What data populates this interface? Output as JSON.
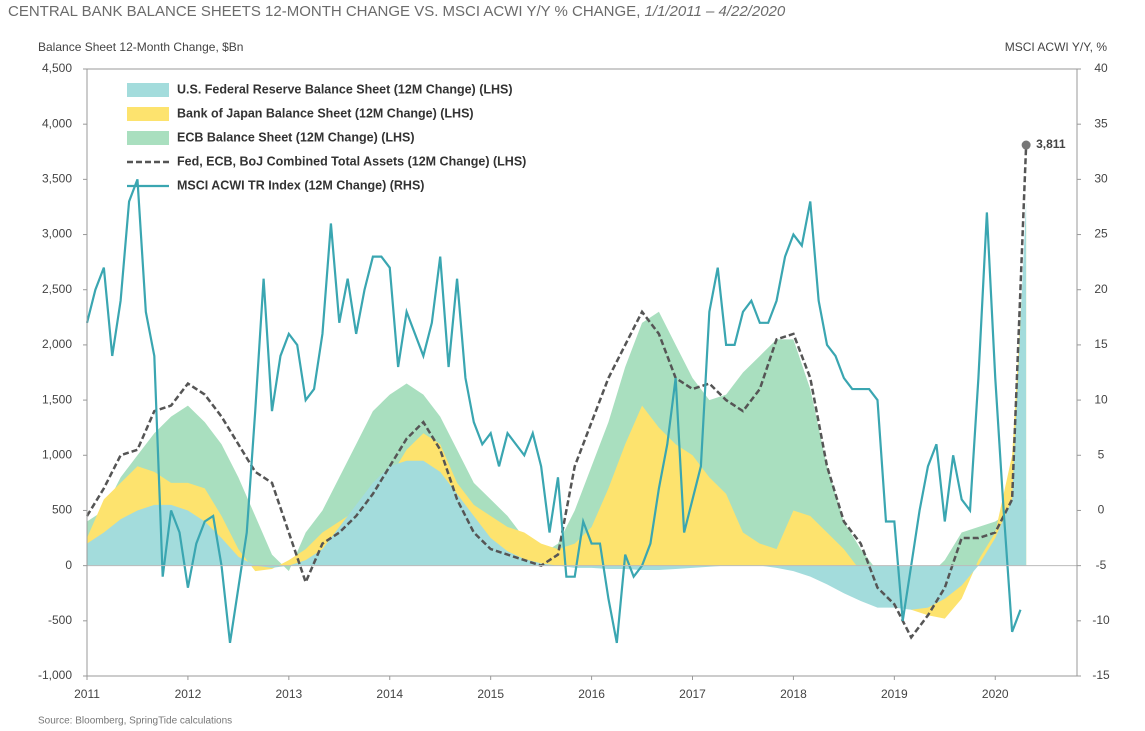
{
  "chart_data": {
    "type": "area",
    "title": "CENTRAL BANK BALANCE SHEETS 12-MONTH CHANGE VS. MSCI ACWI Y/Y % CHANGE, ",
    "date_range": "1/1/2011 – 4/22/2020",
    "y_label": "Balance Sheet 12-Month Change, $Bn",
    "y2_label": "MSCI ACWI Y/Y, %",
    "source": "Source: Bloomberg, SpringTide calculations",
    "legend": "upper left",
    "xlim": [
      2011,
      2020.81
    ],
    "xticks": [
      2011,
      2012,
      2013,
      2014,
      2015,
      2016,
      2017,
      2018,
      2019,
      2020
    ],
    "ylim": [
      -1000,
      4500
    ],
    "yticks": [
      {
        "value": -1000,
        "label": "-1,000"
      },
      -500,
      0,
      500,
      {
        "value": 1000,
        "label": "1,000"
      },
      {
        "value": 1500,
        "label": "1,500"
      },
      {
        "value": 2000,
        "label": "2,000"
      },
      {
        "value": 2500,
        "label": "2,500"
      },
      {
        "value": 3000,
        "label": "3,000"
      },
      {
        "value": 3500,
        "label": "3,500"
      },
      {
        "value": 4000,
        "label": "4,000"
      },
      {
        "value": 4500,
        "label": "4,500"
      }
    ],
    "y2lim": [
      -15,
      40
    ],
    "y2ticks": [
      -15,
      -10,
      -5,
      0,
      5,
      10,
      15,
      20,
      25,
      30,
      35,
      40
    ],
    "x": [
      2011,
      2011.167,
      2011.333,
      2011.5,
      2011.667,
      2011.833,
      2012,
      2012.167,
      2012.333,
      2012.5,
      2012.667,
      2012.833,
      2013,
      2013.167,
      2013.333,
      2013.5,
      2013.667,
      2013.833,
      2014,
      2014.167,
      2014.333,
      2014.5,
      2014.667,
      2014.833,
      2015,
      2015.167,
      2015.333,
      2015.5,
      2015.667,
      2015.833,
      2016,
      2016.167,
      2016.333,
      2016.5,
      2016.667,
      2016.833,
      2017,
      2017.167,
      2017.333,
      2017.5,
      2017.667,
      2017.833,
      2018,
      2018.167,
      2018.333,
      2018.5,
      2018.667,
      2018.833,
      2019,
      2019.167,
      2019.333,
      2019.5,
      2019.667,
      2019.833,
      2020,
      2020.167,
      2020.306
    ],
    "series": [
      {
        "name": "U.S. Federal Reserve Balance Sheet (12M Change) (LHS)",
        "type": "area",
        "color": "#a3dcdc",
        "values": [
          200,
          300,
          420,
          500,
          550,
          550,
          500,
          400,
          250,
          80,
          0,
          -20,
          0,
          50,
          150,
          350,
          550,
          750,
          900,
          950,
          950,
          850,
          650,
          450,
          250,
          130,
          60,
          20,
          0,
          -20,
          -20,
          -30,
          -30,
          -40,
          -40,
          -30,
          -20,
          -10,
          0,
          0,
          0,
          -20,
          -50,
          -100,
          -170,
          -250,
          -320,
          -380,
          -380,
          -400,
          -380,
          -300,
          -180,
          0,
          250,
          600,
          3300
        ]
      },
      {
        "name": "Bank of Japan Balance Sheet (12M Change) (LHS)",
        "type": "area",
        "color": "#fde36e",
        "values": [
          250,
          600,
          750,
          900,
          850,
          750,
          750,
          700,
          450,
          150,
          -50,
          -30,
          50,
          150,
          300,
          400,
          500,
          550,
          800,
          1050,
          1200,
          1100,
          750,
          550,
          450,
          350,
          300,
          200,
          150,
          200,
          350,
          700,
          1100,
          1450,
          1250,
          1100,
          1000,
          800,
          650,
          300,
          200,
          150,
          500,
          450,
          300,
          150,
          -50,
          -200,
          -320,
          -400,
          -450,
          -480,
          -300,
          50,
          300,
          1000,
          3100
        ]
      },
      {
        "name": "ECB Balance Sheet (12M Change) (LHS)",
        "type": "area",
        "color": "#a9dfbf",
        "values": [
          400,
          500,
          800,
          1000,
          1200,
          1350,
          1450,
          1300,
          1100,
          800,
          450,
          100,
          -50,
          300,
          500,
          800,
          1100,
          1400,
          1550,
          1650,
          1550,
          1350,
          1050,
          750,
          600,
          450,
          250,
          100,
          200,
          500,
          900,
          1300,
          1800,
          2200,
          2300,
          2000,
          1700,
          1500,
          1550,
          1750,
          1900,
          2050,
          2050,
          1600,
          900,
          400,
          150,
          -50,
          -150,
          -200,
          -100,
          50,
          300,
          350,
          400,
          500,
          600
        ]
      },
      {
        "name": "Fed, ECB, BoJ Combined Total Assets (12M Change) (LHS)",
        "type": "line",
        "style": "dashed",
        "color": "#555555",
        "values": [
          450,
          700,
          1000,
          1050,
          1400,
          1450,
          1650,
          1550,
          1350,
          1100,
          850,
          750,
          300,
          -150,
          200,
          300,
          450,
          650,
          900,
          1150,
          1300,
          1050,
          600,
          300,
          150,
          100,
          50,
          0,
          100,
          900,
          1300,
          1700,
          2000,
          2300,
          2100,
          1700,
          1600,
          1650,
          1500,
          1400,
          1600,
          2050,
          2100,
          1700,
          900,
          400,
          200,
          -200,
          -350,
          -650,
          -450,
          -200,
          250,
          250,
          300,
          600,
          3811
        ],
        "value_labels": [
          null,
          null,
          null,
          null,
          null,
          null,
          null,
          null,
          null,
          null,
          null,
          null,
          null,
          null,
          null,
          null,
          null,
          null,
          null,
          null,
          null,
          null,
          null,
          null,
          null,
          null,
          null,
          null,
          null,
          null,
          null,
          null,
          null,
          null,
          null,
          null,
          null,
          null,
          null,
          null,
          null,
          null,
          null,
          null,
          null,
          null,
          null,
          null,
          null,
          null,
          null,
          null,
          null,
          null,
          null,
          null,
          "3,811"
        ]
      },
      {
        "name": "MSCI ACWI TR Index (12M Change) (RHS)",
        "type": "line",
        "style": "solid",
        "axis": "y2",
        "color": "#3aa6b1",
        "x": [
          2011,
          2011.083,
          2011.167,
          2011.25,
          2011.333,
          2011.417,
          2011.5,
          2011.583,
          2011.667,
          2011.75,
          2011.833,
          2011.917,
          2012,
          2012.083,
          2012.167,
          2012.25,
          2012.333,
          2012.417,
          2012.5,
          2012.583,
          2012.667,
          2012.75,
          2012.833,
          2012.917,
          2013,
          2013.083,
          2013.167,
          2013.25,
          2013.333,
          2013.417,
          2013.5,
          2013.583,
          2013.667,
          2013.75,
          2013.833,
          2013.917,
          2014,
          2014.083,
          2014.167,
          2014.25,
          2014.333,
          2014.417,
          2014.5,
          2014.583,
          2014.667,
          2014.75,
          2014.833,
          2014.917,
          2015,
          2015.083,
          2015.167,
          2015.25,
          2015.333,
          2015.417,
          2015.5,
          2015.583,
          2015.667,
          2015.75,
          2015.833,
          2015.917,
          2016,
          2016.083,
          2016.167,
          2016.25,
          2016.333,
          2016.417,
          2016.5,
          2016.583,
          2016.667,
          2016.75,
          2016.833,
          2016.917,
          2017,
          2017.083,
          2017.167,
          2017.25,
          2017.333,
          2017.417,
          2017.5,
          2017.583,
          2017.667,
          2017.75,
          2017.833,
          2017.917,
          2018,
          2018.083,
          2018.167,
          2018.25,
          2018.333,
          2018.417,
          2018.5,
          2018.583,
          2018.667,
          2018.75,
          2018.833,
          2018.917,
          2019,
          2019.083,
          2019.167,
          2019.25,
          2019.333,
          2019.417,
          2019.5,
          2019.583,
          2019.667,
          2019.75,
          2019.833,
          2019.917,
          2020,
          2020.083,
          2020.167,
          2020.25
        ],
        "values": [
          17,
          20,
          22,
          14,
          19,
          28,
          30,
          18,
          14,
          -6,
          0,
          -2,
          -7,
          -3,
          -1,
          -0.5,
          -5,
          -12,
          -7,
          -2,
          9,
          21,
          9,
          14,
          16,
          15,
          10,
          11,
          16,
          26,
          17,
          21,
          16,
          20,
          23,
          23,
          22,
          13,
          18,
          16,
          14,
          17,
          23,
          13,
          21,
          12,
          8,
          6,
          7,
          4,
          7,
          6,
          5,
          7,
          4,
          -2,
          3,
          -6,
          -6,
          -1,
          -3,
          -3,
          -8,
          -12,
          -4,
          -6,
          -5,
          -3,
          2,
          6,
          12,
          -2,
          1,
          4,
          18,
          22,
          15,
          15,
          18,
          19,
          17,
          17,
          19,
          23,
          25,
          24,
          28,
          19,
          15,
          14,
          12,
          11,
          11,
          11,
          10,
          -1,
          -1,
          -10,
          -5,
          0,
          4,
          6,
          -1,
          5,
          1,
          0,
          12,
          27,
          12,
          0,
          -11,
          -9
        ]
      }
    ]
  }
}
